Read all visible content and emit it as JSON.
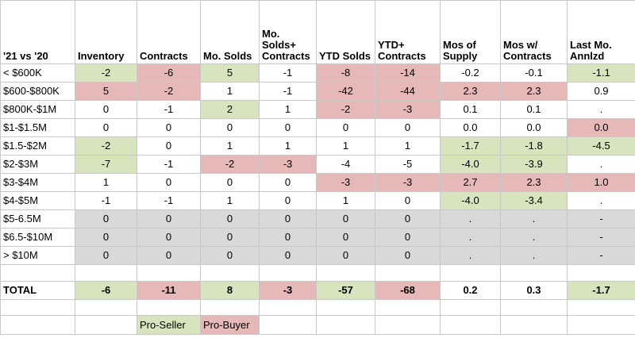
{
  "colors": {
    "pro_seller": "#d7e4bd",
    "pro_buyer": "#e6b9b8",
    "no_data": "#d9d9d9"
  },
  "headers": [
    "'21 vs '20",
    "Inventory",
    "Contracts",
    "Mo. Solds",
    "Mo. Solds+ Contracts",
    "YTD Solds",
    "YTD+ Contracts",
    "Mos of Supply",
    "Mos w/ Contracts",
    "Last Mo. Annlzd"
  ],
  "rows": [
    {
      "label": "< $600K",
      "cells": [
        {
          "v": "-2",
          "c": "g"
        },
        {
          "v": "-6",
          "c": "r"
        },
        {
          "v": "5",
          "c": "g"
        },
        {
          "v": "-1",
          "c": ""
        },
        {
          "v": "-8",
          "c": "r"
        },
        {
          "v": "-14",
          "c": "r"
        },
        {
          "v": "-0.2",
          "c": ""
        },
        {
          "v": "-0.1",
          "c": ""
        },
        {
          "v": "-1.1",
          "c": "g"
        }
      ]
    },
    {
      "label": "$600-$800K",
      "cells": [
        {
          "v": "5",
          "c": "r"
        },
        {
          "v": "-2",
          "c": "r"
        },
        {
          "v": "1",
          "c": ""
        },
        {
          "v": "-1",
          "c": ""
        },
        {
          "v": "-42",
          "c": "r"
        },
        {
          "v": "-44",
          "c": "r"
        },
        {
          "v": "2.3",
          "c": "r"
        },
        {
          "v": "2.3",
          "c": "r"
        },
        {
          "v": "0.9",
          "c": ""
        }
      ]
    },
    {
      "label": "$800K-$1M",
      "cells": [
        {
          "v": "0",
          "c": ""
        },
        {
          "v": "-1",
          "c": ""
        },
        {
          "v": "2",
          "c": "g"
        },
        {
          "v": "1",
          "c": ""
        },
        {
          "v": "-2",
          "c": "r"
        },
        {
          "v": "-3",
          "c": "r"
        },
        {
          "v": "0.1",
          "c": ""
        },
        {
          "v": "0.1",
          "c": ""
        },
        {
          "v": ".",
          "c": ""
        }
      ]
    },
    {
      "label": "$1-$1.5M",
      "cells": [
        {
          "v": "0",
          "c": ""
        },
        {
          "v": "0",
          "c": ""
        },
        {
          "v": "0",
          "c": ""
        },
        {
          "v": "0",
          "c": ""
        },
        {
          "v": "0",
          "c": ""
        },
        {
          "v": "0",
          "c": ""
        },
        {
          "v": "0.0",
          "c": ""
        },
        {
          "v": "0.0",
          "c": ""
        },
        {
          "v": "0.0",
          "c": "r"
        }
      ]
    },
    {
      "label": "$1.5-$2M",
      "cells": [
        {
          "v": "-2",
          "c": "g"
        },
        {
          "v": "0",
          "c": ""
        },
        {
          "v": "1",
          "c": ""
        },
        {
          "v": "1",
          "c": ""
        },
        {
          "v": "1",
          "c": ""
        },
        {
          "v": "1",
          "c": ""
        },
        {
          "v": "-1.7",
          "c": "g"
        },
        {
          "v": "-1.8",
          "c": "g"
        },
        {
          "v": "-4.5",
          "c": "g"
        }
      ]
    },
    {
      "label": "$2-$3M",
      "cells": [
        {
          "v": "-7",
          "c": "g"
        },
        {
          "v": "-1",
          "c": ""
        },
        {
          "v": "-2",
          "c": "r"
        },
        {
          "v": "-3",
          "c": "r"
        },
        {
          "v": "-4",
          "c": ""
        },
        {
          "v": "-5",
          "c": ""
        },
        {
          "v": "-4.0",
          "c": "g"
        },
        {
          "v": "-3.9",
          "c": "g"
        },
        {
          "v": ".",
          "c": ""
        }
      ]
    },
    {
      "label": "$3-$4M",
      "cells": [
        {
          "v": "1",
          "c": ""
        },
        {
          "v": "0",
          "c": ""
        },
        {
          "v": "0",
          "c": ""
        },
        {
          "v": "0",
          "c": ""
        },
        {
          "v": "-3",
          "c": "r"
        },
        {
          "v": "-3",
          "c": "r"
        },
        {
          "v": "2.7",
          "c": "r"
        },
        {
          "v": "2.3",
          "c": "r"
        },
        {
          "v": "1.0",
          "c": "r"
        }
      ]
    },
    {
      "label": "$4-$5M",
      "cells": [
        {
          "v": "-1",
          "c": ""
        },
        {
          "v": "-1",
          "c": ""
        },
        {
          "v": "1",
          "c": ""
        },
        {
          "v": "0",
          "c": ""
        },
        {
          "v": "1",
          "c": ""
        },
        {
          "v": "0",
          "c": ""
        },
        {
          "v": "-4.0",
          "c": "g"
        },
        {
          "v": "-3.4",
          "c": "g"
        },
        {
          "v": ".",
          "c": ""
        }
      ]
    },
    {
      "label": "$5-6.5M",
      "cells": [
        {
          "v": "0",
          "c": "x"
        },
        {
          "v": "0",
          "c": "x"
        },
        {
          "v": "0",
          "c": "x"
        },
        {
          "v": "0",
          "c": "x"
        },
        {
          "v": "0",
          "c": "x"
        },
        {
          "v": "0",
          "c": "x"
        },
        {
          "v": ".",
          "c": "x"
        },
        {
          "v": ".",
          "c": "x"
        },
        {
          "v": "-",
          "c": "x"
        }
      ]
    },
    {
      "label": "$6.5-$10M",
      "cells": [
        {
          "v": "0",
          "c": "x"
        },
        {
          "v": "0",
          "c": "x"
        },
        {
          "v": "0",
          "c": "x"
        },
        {
          "v": "0",
          "c": "x"
        },
        {
          "v": "0",
          "c": "x"
        },
        {
          "v": "0",
          "c": "x"
        },
        {
          "v": ".",
          "c": "x"
        },
        {
          "v": ".",
          "c": "x"
        },
        {
          "v": "-",
          "c": "x"
        }
      ]
    },
    {
      "label": "> $10M",
      "cells": [
        {
          "v": "0",
          "c": "x"
        },
        {
          "v": "0",
          "c": "x"
        },
        {
          "v": "0",
          "c": "x"
        },
        {
          "v": "0",
          "c": "x"
        },
        {
          "v": "0",
          "c": "x"
        },
        {
          "v": "0",
          "c": "x"
        },
        {
          "v": ".",
          "c": "x"
        },
        {
          "v": ".",
          "c": "x"
        },
        {
          "v": "-",
          "c": "x"
        }
      ]
    }
  ],
  "total": {
    "label": "TOTAL",
    "cells": [
      {
        "v": "-6",
        "c": "g"
      },
      {
        "v": "-11",
        "c": "r"
      },
      {
        "v": "8",
        "c": "g"
      },
      {
        "v": "-3",
        "c": "r"
      },
      {
        "v": "-57",
        "c": "g"
      },
      {
        "v": "-68",
        "c": "r"
      },
      {
        "v": "0.2",
        "c": ""
      },
      {
        "v": "0.3",
        "c": ""
      },
      {
        "v": "-1.7",
        "c": "g"
      }
    ]
  },
  "legend": {
    "pro_seller": "Pro-Seller",
    "pro_buyer": "Pro-Buyer"
  }
}
